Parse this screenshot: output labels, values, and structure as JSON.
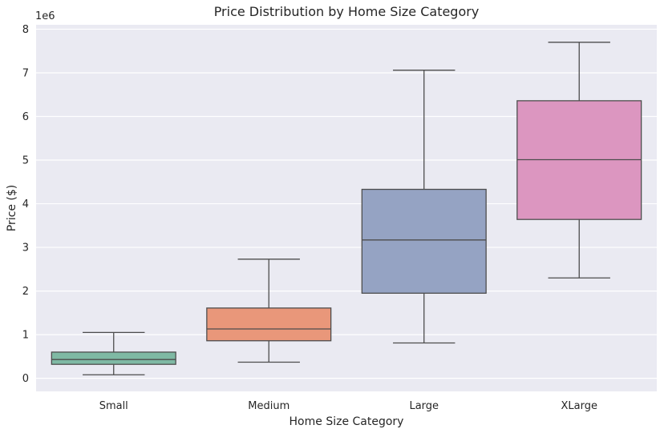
{
  "chart_data": {
    "type": "box",
    "title": "Price Distribution by Home Size Category",
    "xlabel": "Home Size Category",
    "ylabel": "Price ($)",
    "y_offset_label": "1e6",
    "ylim": [
      -300000,
      8100000
    ],
    "y_ticks": [
      0,
      1000000,
      2000000,
      3000000,
      4000000,
      5000000,
      6000000,
      7000000,
      8000000
    ],
    "y_tick_labels": [
      "0",
      "1",
      "2",
      "3",
      "4",
      "5",
      "6",
      "7",
      "8"
    ],
    "grid": true,
    "legend": "none",
    "categories": [
      "Small",
      "Medium",
      "Large",
      "XLarge"
    ],
    "boxes": [
      {
        "category": "Small",
        "whisker_low": 80000,
        "q1": 320000,
        "median": 430000,
        "q3": 600000,
        "whisker_high": 1050000,
        "color": "#7fb9a4"
      },
      {
        "category": "Medium",
        "whisker_low": 370000,
        "q1": 860000,
        "median": 1130000,
        "q3": 1610000,
        "whisker_high": 2730000,
        "color": "#e9977a"
      },
      {
        "category": "Large",
        "whisker_low": 810000,
        "q1": 1950000,
        "median": 3170000,
        "q3": 4330000,
        "whisker_high": 7060000,
        "color": "#95a3c3"
      },
      {
        "category": "XLarge",
        "whisker_low": 2300000,
        "q1": 3640000,
        "median": 5010000,
        "q3": 6360000,
        "whisker_high": 7700000,
        "color": "#dc96c0"
      }
    ]
  },
  "colors": {
    "plot_background": "#eaeaf2",
    "grid": "#ffffff",
    "box_edge": "#4d4d4d"
  }
}
